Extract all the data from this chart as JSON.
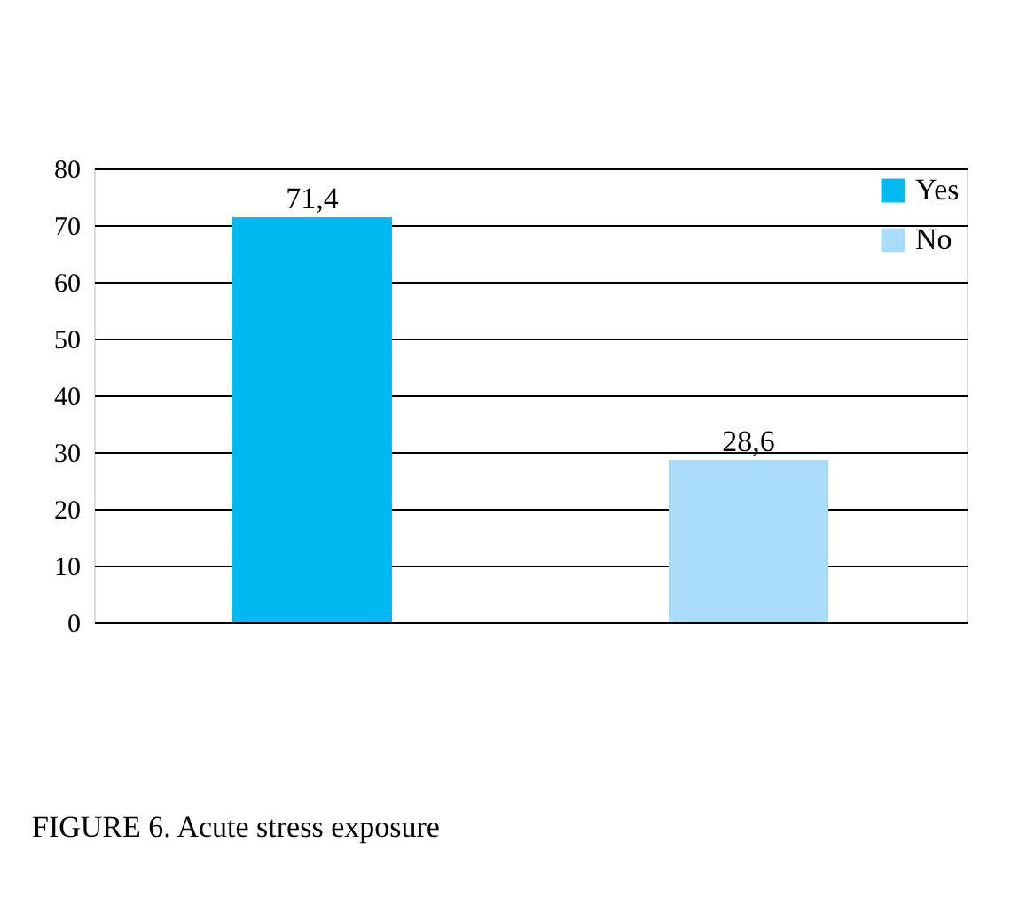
{
  "chart_data": {
    "type": "bar",
    "categories": [
      null,
      null
    ],
    "series": [
      {
        "name": "Yes",
        "color": "#00b9f0",
        "values": [
          71.4,
          null
        ],
        "value_labels": [
          "71,4",
          null
        ]
      },
      {
        "name": "No",
        "color": "#a9ddf7",
        "values": [
          null,
          28.6
        ],
        "value_labels": [
          null,
          "28,6"
        ]
      }
    ],
    "ylim": [
      0,
      80
    ],
    "yticks": [
      0,
      10,
      20,
      30,
      40,
      50,
      60,
      70,
      80
    ],
    "grid": "y",
    "legend": "top right",
    "annotations": [
      "FIGURE 6.  Acute stress exposure"
    ]
  }
}
